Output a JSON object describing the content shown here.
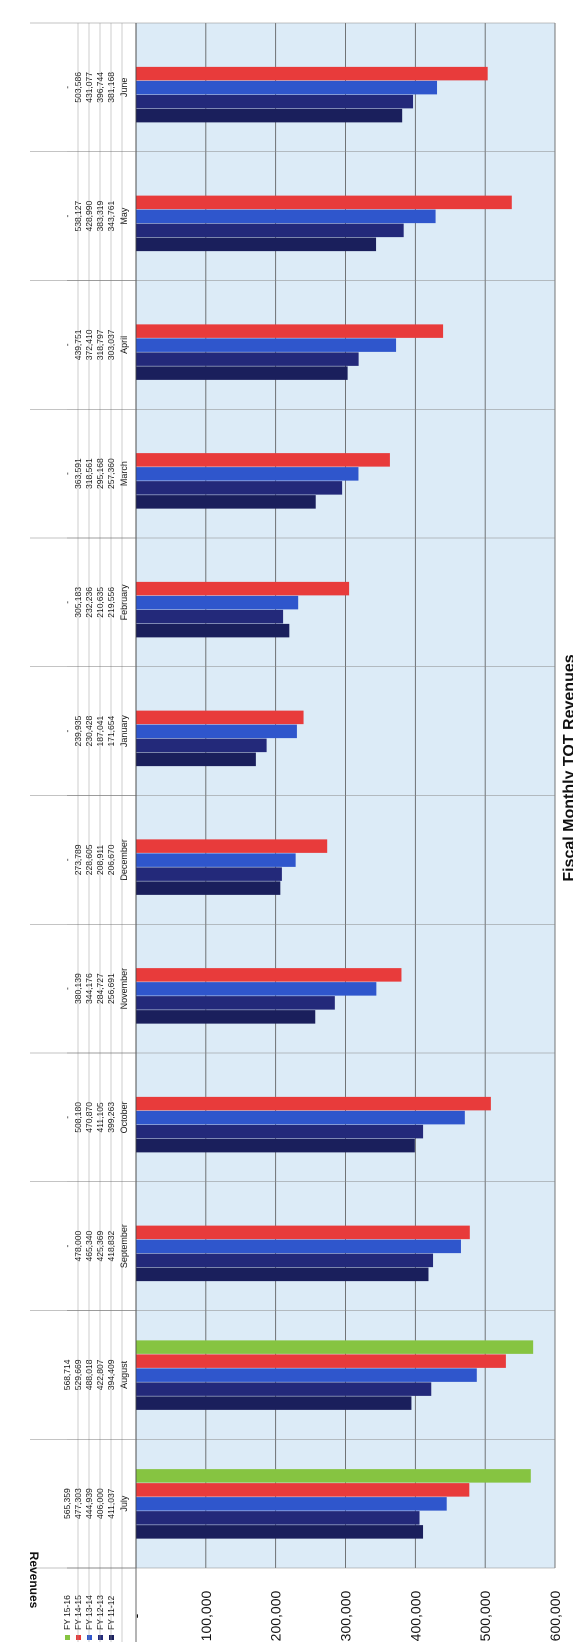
{
  "chart_data": {
    "type": "bar",
    "title": "Fiscal Monthly TOT Revenues",
    "ylabel": "Revenues",
    "ylim": [
      0,
      600000
    ],
    "ytick_labels": [
      "-",
      "100,000",
      "200,000",
      "300,000",
      "400,000",
      "500,000",
      "600,000"
    ],
    "ytick_values": [
      0,
      100000,
      200000,
      300000,
      400000,
      500000,
      600000
    ],
    "categories": [
      "July",
      "August",
      "September",
      "October",
      "November",
      "December",
      "January",
      "February",
      "March",
      "April",
      "May",
      "June"
    ],
    "series": [
      {
        "name": "FY 11-12",
        "color": "#1a1f5c",
        "values": [
          411037,
          394409,
          418832,
          399263,
          256691,
          206670,
          171654,
          219556,
          257360,
          303037,
          343761,
          381168
        ],
        "labels": [
          "411,037",
          "394,409",
          "418,832",
          "399,263",
          "256,691",
          "206,670",
          "171,654",
          "219,556",
          "257,360",
          "303,037",
          "343,761",
          "381,168"
        ]
      },
      {
        "name": "FY 12-13",
        "color": "#23297a",
        "values": [
          406000,
          422807,
          425369,
          411105,
          284727,
          208911,
          187041,
          210635,
          295168,
          318797,
          383319,
          396744
        ],
        "labels": [
          "406,000",
          "422,807",
          "425,369",
          "411,105",
          "284,727",
          "208,911",
          "187,041",
          "210,635",
          "295,168",
          "318,797",
          "383,319",
          "396,744"
        ]
      },
      {
        "name": "FY 13-14",
        "color": "#2f56cc",
        "values": [
          444939,
          488018,
          465340,
          470870,
          344176,
          228605,
          230428,
          232236,
          318561,
          372410,
          428990,
          431077
        ],
        "labels": [
          "444,939",
          "488,018",
          "465,340",
          "470,870",
          "344,176",
          "228,605",
          "230,428",
          "232,236",
          "318,561",
          "372,410",
          "428,990",
          "431,077"
        ]
      },
      {
        "name": "FY 14-15",
        "color": "#e83b3b",
        "values": [
          477303,
          529669,
          478000,
          508180,
          380139,
          273789,
          239935,
          305183,
          363591,
          439751,
          538127,
          503586
        ],
        "labels": [
          "477,303",
          "529,669",
          "478,000",
          "508,180",
          "380,139",
          "273,789",
          "239,935",
          "305,183",
          "363,591",
          "439,751",
          "538,127",
          "503,586"
        ]
      },
      {
        "name": "FY 15-16",
        "color": "#86c441",
        "values": [
          565359,
          568714,
          null,
          null,
          null,
          null,
          null,
          null,
          null,
          null,
          null,
          null
        ],
        "labels": [
          "565,359",
          "568,714",
          "-",
          "-",
          "-",
          "-",
          "-",
          "-",
          "-",
          "-",
          "-",
          "-"
        ]
      }
    ],
    "grid": true,
    "legend": "data-table-bottom"
  }
}
